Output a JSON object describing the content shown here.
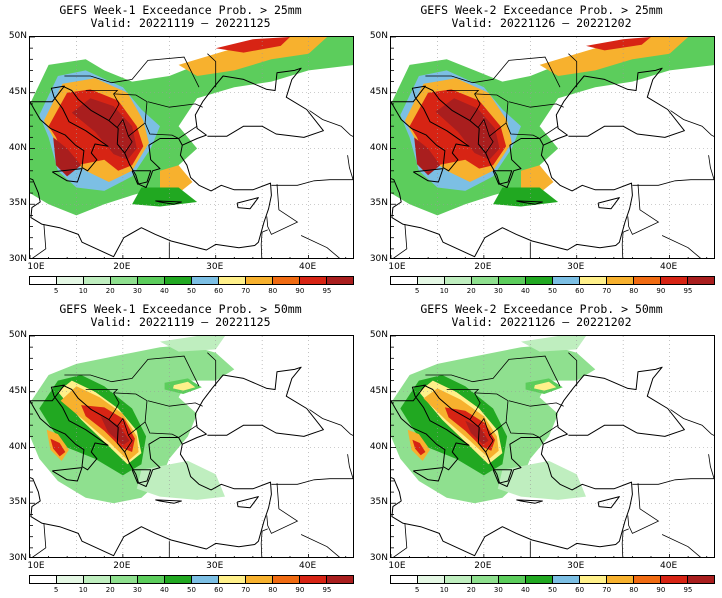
{
  "panels": [
    {
      "title": "GEFS Week-1 Exceedance Prob. > 25mm",
      "valid": "Valid: 20221119 – 20221125",
      "threshold_mm": 25
    },
    {
      "title": "GEFS Week-2 Exceedance Prob. > 25mm",
      "valid": "Valid: 20221126 – 20221202",
      "threshold_mm": 25
    },
    {
      "title": "GEFS Week-1 Exceedance Prob. > 50mm",
      "valid": "Valid: 20221119 – 20221125",
      "threshold_mm": 50
    },
    {
      "title": "GEFS Week-2 Exceedance Prob. > 50mm",
      "valid": "Valid: 20221126 – 20221202",
      "threshold_mm": 50
    }
  ],
  "lat_labels": [
    "50N",
    "45N",
    "40N",
    "35N",
    "30N"
  ],
  "lon_labels": [
    "10E",
    "20E",
    "30E",
    "40E"
  ],
  "colorbar": {
    "labels": [
      "5",
      "10",
      "20",
      "30",
      "40",
      "50",
      "60",
      "70",
      "80",
      "90",
      "95"
    ],
    "colors": [
      "#ffffff",
      "#e4f7e4",
      "#bfeebf",
      "#8fe08f",
      "#5ccd5c",
      "#21a821",
      "#7cbfe4",
      "#fff08a",
      "#f7b12e",
      "#f06b12",
      "#d72414",
      "#a91e1e"
    ]
  },
  "map_extent": {
    "lon_min": 10,
    "lon_max": 45,
    "lat_min": 30,
    "lat_max": 50
  }
}
